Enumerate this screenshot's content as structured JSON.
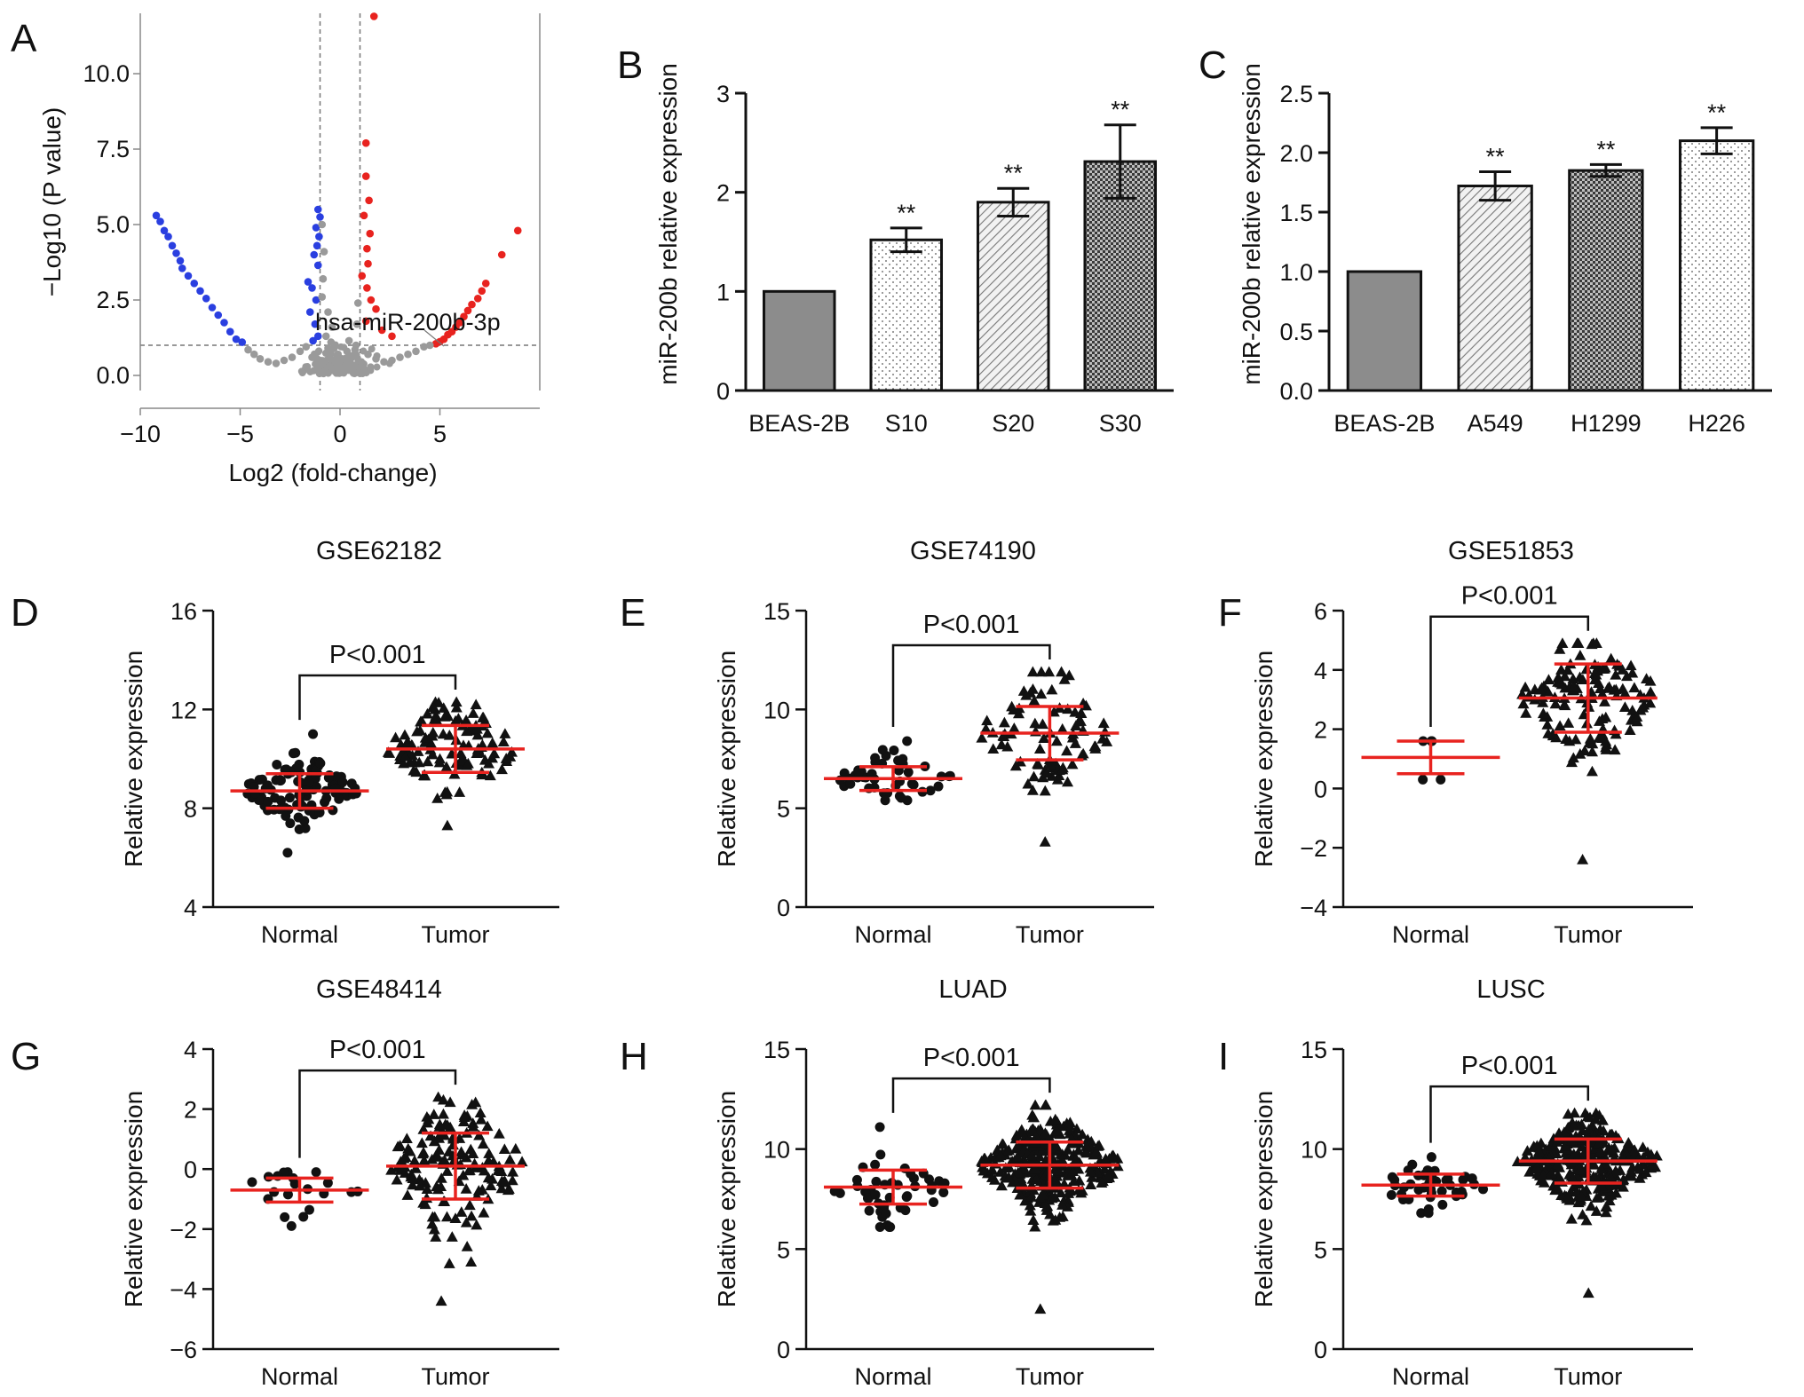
{
  "colors": {
    "red": "#e8231f",
    "blue": "#2a3fe0",
    "grey": "#9a9a9a",
    "bar_grey": "#8c8c8c",
    "black": "#111111"
  },
  "chart_data": [
    {
      "id": "A",
      "letter": "A",
      "type": "scatter",
      "subtype": "volcano",
      "xlabel": "Log2 (fold-change)",
      "ylabel": "−Log10 (P value)",
      "xlim": [
        -10,
        10
      ],
      "ylim": [
        -0.5,
        12
      ],
      "xticks": [
        -10,
        -5,
        0,
        5
      ],
      "xtick_labels": [
        "−10",
        "−5",
        "0",
        "5"
      ],
      "yticks": [
        0,
        2.5,
        5,
        7.5,
        10
      ],
      "ytick_labels": [
        "0.0",
        "2.5",
        "5.0",
        "7.5",
        "10.0"
      ],
      "thresholds": {
        "x": [
          -1,
          1
        ],
        "y": 1
      },
      "annotation": "hsa-miR-200b-3p",
      "series": [
        {
          "name": "down",
          "color": "blue",
          "points": [
            [
              -9.2,
              5.3
            ],
            [
              -9.0,
              5.1
            ],
            [
              -8.8,
              4.8
            ],
            [
              -8.6,
              4.6
            ],
            [
              -8.4,
              4.3
            ],
            [
              -8.2,
              4.05
            ],
            [
              -8.0,
              3.8
            ],
            [
              -7.9,
              3.55
            ],
            [
              -7.6,
              3.3
            ],
            [
              -7.3,
              3.05
            ],
            [
              -7.0,
              2.8
            ],
            [
              -6.7,
              2.55
            ],
            [
              -6.4,
              2.25
            ],
            [
              -6.1,
              2.0
            ],
            [
              -5.8,
              1.75
            ],
            [
              -5.5,
              1.45
            ],
            [
              -5.2,
              1.2
            ],
            [
              -4.9,
              1.1
            ],
            [
              -1.1,
              5.5
            ],
            [
              -1.0,
              5.25
            ],
            [
              -1.2,
              4.9
            ],
            [
              -1.05,
              4.6
            ],
            [
              -1.15,
              4.3
            ],
            [
              -1.3,
              4.0
            ],
            [
              -1.1,
              3.65
            ],
            [
              -1.6,
              3.1
            ],
            [
              -1.4,
              2.9
            ],
            [
              -1.2,
              2.5
            ],
            [
              -1.5,
              2.1
            ],
            [
              -1.25,
              1.7
            ],
            [
              -1.1,
              1.3
            ],
            [
              -1.35,
              1.15
            ]
          ]
        },
        {
          "name": "up",
          "color": "red",
          "points": [
            [
              1.7,
              11.9
            ],
            [
              1.3,
              7.7
            ],
            [
              1.3,
              6.6
            ],
            [
              1.45,
              5.8
            ],
            [
              1.2,
              5.3
            ],
            [
              1.5,
              4.7
            ],
            [
              1.35,
              4.2
            ],
            [
              1.4,
              3.7
            ],
            [
              1.1,
              3.3
            ],
            [
              1.35,
              2.9
            ],
            [
              1.55,
              2.5
            ],
            [
              1.8,
              2.2
            ],
            [
              1.3,
              1.8
            ],
            [
              2.1,
              1.5
            ],
            [
              2.6,
              1.3
            ],
            [
              8.9,
              4.8
            ],
            [
              8.1,
              4.0
            ],
            [
              7.3,
              3.05
            ],
            [
              7.1,
              2.8
            ],
            [
              6.9,
              2.55
            ],
            [
              6.6,
              2.35
            ],
            [
              6.4,
              2.15
            ],
            [
              6.2,
              1.95
            ],
            [
              6.0,
              1.75
            ],
            [
              5.8,
              1.6
            ],
            [
              5.6,
              1.45
            ],
            [
              5.4,
              1.35
            ],
            [
              5.2,
              1.2
            ],
            [
              5.0,
              1.12
            ],
            [
              4.8,
              1.05
            ]
          ]
        },
        {
          "name": "ns",
          "color": "grey",
          "points": [
            [
              -4.6,
              0.85
            ],
            [
              -4.3,
              0.7
            ],
            [
              -4.0,
              0.55
            ],
            [
              -3.6,
              0.45
            ],
            [
              -3.2,
              0.4
            ],
            [
              -2.8,
              0.5
            ],
            [
              -2.4,
              0.6
            ],
            [
              -2.0,
              0.8
            ],
            [
              -1.7,
              0.95
            ],
            [
              -0.9,
              5.0
            ],
            [
              -0.8,
              4.1
            ],
            [
              -0.85,
              3.2
            ],
            [
              -0.9,
              2.6
            ],
            [
              -0.6,
              2.1
            ],
            [
              -0.4,
              1.6
            ],
            [
              -0.7,
              1.3
            ],
            [
              -0.3,
              0.9
            ],
            [
              -0.1,
              0.7
            ],
            [
              0.1,
              0.55
            ],
            [
              0.3,
              0.4
            ],
            [
              0.5,
              0.3
            ],
            [
              -0.5,
              0.3
            ],
            [
              -0.2,
              0.2
            ],
            [
              0.0,
              0.1
            ],
            [
              0.2,
              0.15
            ],
            [
              0.6,
              0.65
            ],
            [
              0.8,
              1.0
            ],
            [
              0.85,
              1.7
            ],
            [
              0.9,
              2.4
            ],
            [
              0.75,
              0.85
            ],
            [
              -0.6,
              0.9
            ],
            [
              -1.0,
              0.5
            ],
            [
              1.0,
              0.45
            ],
            [
              1.4,
              0.7
            ],
            [
              1.8,
              0.55
            ],
            [
              2.2,
              0.45
            ],
            [
              2.6,
              0.5
            ],
            [
              3.0,
              0.6
            ],
            [
              3.4,
              0.7
            ],
            [
              3.8,
              0.8
            ],
            [
              4.2,
              0.95
            ],
            [
              4.5,
              1.0
            ],
            [
              -1.4,
              0.6
            ],
            [
              -0.3,
              0.35
            ],
            [
              0.35,
              0.8
            ],
            [
              -0.45,
              1.1
            ],
            [
              0.45,
              1.15
            ],
            [
              -0.15,
              0.45
            ],
            [
              0.15,
              0.3
            ],
            [
              -0.75,
              0.2
            ],
            [
              0.7,
              0.25
            ]
          ]
        }
      ]
    },
    {
      "id": "B",
      "letter": "B",
      "type": "bar",
      "ylabel": "miR-200b relative expression",
      "categories": [
        "BEAS-2B",
        "S10",
        "S20",
        "S30"
      ],
      "values": [
        1.0,
        1.52,
        1.9,
        2.31
      ],
      "errors": [
        0,
        0.12,
        0.14,
        0.37
      ],
      "significance": [
        "",
        "**",
        "**",
        "**"
      ],
      "patterns": [
        "solid",
        "dots",
        "hatch",
        "checker"
      ],
      "ylim": [
        0,
        3
      ],
      "yticks": [
        0,
        1,
        2,
        3
      ],
      "ytick_labels": [
        "0",
        "1",
        "2",
        "3"
      ]
    },
    {
      "id": "C",
      "letter": "C",
      "type": "bar",
      "ylabel": "miR-200b relative expression",
      "categories": [
        "BEAS-2B",
        "A549",
        "H1299",
        "H226"
      ],
      "values": [
        1.0,
        1.72,
        1.85,
        2.1
      ],
      "errors": [
        0,
        0.12,
        0.05,
        0.11
      ],
      "significance": [
        "",
        "**",
        "**",
        "**"
      ],
      "patterns": [
        "solid",
        "hatch",
        "checker",
        "dots"
      ],
      "ylim": [
        0,
        2.5
      ],
      "yticks": [
        0,
        0.5,
        1,
        1.5,
        2,
        2.5
      ],
      "ytick_labels": [
        "0.0",
        "0.5",
        "1.0",
        "1.5",
        "2.0",
        "2.5"
      ]
    },
    {
      "id": "D",
      "letter": "D",
      "type": "scatter",
      "subtype": "dot-plot",
      "title": "GSE62182",
      "ylabel": "Relative expression",
      "categories": [
        "Normal",
        "Tumor"
      ],
      "ylim": [
        4,
        16
      ],
      "yticks": [
        4,
        8,
        12,
        16
      ],
      "ytick_labels": [
        "4",
        "8",
        "12",
        "16"
      ],
      "p_text": "P<0.001",
      "groups": [
        {
          "name": "Normal",
          "marker": "circle",
          "mean": 8.7,
          "sd": 0.7,
          "n": 110,
          "min": 6.2,
          "max": 11.0
        },
        {
          "name": "Tumor",
          "marker": "triangle",
          "mean": 10.4,
          "sd": 0.95,
          "n": 120,
          "min": 7.3,
          "max": 12.3
        }
      ]
    },
    {
      "id": "E",
      "letter": "E",
      "type": "scatter",
      "subtype": "dot-plot",
      "title": "GSE74190",
      "ylabel": "Relative expression",
      "categories": [
        "Normal",
        "Tumor"
      ],
      "ylim": [
        0,
        15
      ],
      "yticks": [
        0,
        5,
        10,
        15
      ],
      "ytick_labels": [
        "0",
        "5",
        "10",
        "15"
      ],
      "p_text": "P<0.001",
      "groups": [
        {
          "name": "Normal",
          "marker": "circle",
          "mean": 6.5,
          "sd": 0.6,
          "n": 45,
          "min": 5.4,
          "max": 8.4
        },
        {
          "name": "Tumor",
          "marker": "triangle",
          "mean": 8.8,
          "sd": 1.35,
          "n": 90,
          "min": 3.3,
          "max": 11.9
        }
      ]
    },
    {
      "id": "F",
      "letter": "F",
      "type": "scatter",
      "subtype": "dot-plot",
      "title": "GSE51853",
      "ylabel": "Relative expression",
      "categories": [
        "Normal",
        "Tumor"
      ],
      "ylim": [
        -4,
        6
      ],
      "yticks": [
        -4,
        -2,
        0,
        2,
        4,
        6
      ],
      "ytick_labels": [
        "−4",
        "−2",
        "0",
        "2",
        "4",
        "6"
      ],
      "p_text": "P<0.001",
      "groups": [
        {
          "name": "Normal",
          "marker": "circle",
          "mean": 1.05,
          "sd": 0.55,
          "n": 5,
          "min": 0.3,
          "max": 1.6
        },
        {
          "name": "Tumor",
          "marker": "triangle",
          "mean": 3.05,
          "sd": 1.15,
          "n": 140,
          "min": -2.4,
          "max": 4.9
        }
      ]
    },
    {
      "id": "G",
      "letter": "G",
      "type": "scatter",
      "subtype": "dot-plot",
      "title": "GSE48414",
      "ylabel": "Relative expression",
      "categories": [
        "Normal",
        "Tumor"
      ],
      "ylim": [
        -6,
        4
      ],
      "yticks": [
        -6,
        -4,
        -2,
        0,
        2,
        4
      ],
      "ytick_labels": [
        "−6",
        "−4",
        "−2",
        "0",
        "2",
        "4"
      ],
      "p_text": "P<0.001",
      "groups": [
        {
          "name": "Normal",
          "marker": "circle",
          "mean": -0.7,
          "sd": 0.4,
          "n": 20,
          "min": -1.9,
          "max": -0.1
        },
        {
          "name": "Tumor",
          "marker": "triangle",
          "mean": 0.1,
          "sd": 1.1,
          "n": 150,
          "min": -4.4,
          "max": 2.4
        }
      ]
    },
    {
      "id": "H",
      "letter": "H",
      "type": "scatter",
      "subtype": "dot-plot",
      "title": "LUAD",
      "ylabel": "Relative expression",
      "categories": [
        "Normal",
        "Tumor"
      ],
      "ylim": [
        0,
        15
      ],
      "yticks": [
        0,
        5,
        10,
        15
      ],
      "ytick_labels": [
        "0",
        "5",
        "10",
        "15"
      ],
      "p_text": "P<0.001",
      "groups": [
        {
          "name": "Normal",
          "marker": "circle",
          "mean": 8.1,
          "sd": 0.85,
          "n": 45,
          "min": 6.1,
          "max": 11.1
        },
        {
          "name": "Tumor",
          "marker": "triangle",
          "mean": 9.2,
          "sd": 1.15,
          "n": 320,
          "min": 2.0,
          "max": 12.2
        }
      ]
    },
    {
      "id": "I",
      "letter": "I",
      "type": "scatter",
      "subtype": "dot-plot",
      "title": "LUSC",
      "ylabel": "Relative expression",
      "categories": [
        "Normal",
        "Tumor"
      ],
      "ylim": [
        0,
        15
      ],
      "yticks": [
        0,
        5,
        10,
        15
      ],
      "ytick_labels": [
        "0",
        "5",
        "10",
        "15"
      ],
      "p_text": "P<0.001",
      "groups": [
        {
          "name": "Normal",
          "marker": "circle",
          "mean": 8.2,
          "sd": 0.55,
          "n": 45,
          "min": 6.8,
          "max": 9.6
        },
        {
          "name": "Tumor",
          "marker": "triangle",
          "mean": 9.4,
          "sd": 1.1,
          "n": 300,
          "min": 2.8,
          "max": 11.8
        }
      ]
    }
  ]
}
